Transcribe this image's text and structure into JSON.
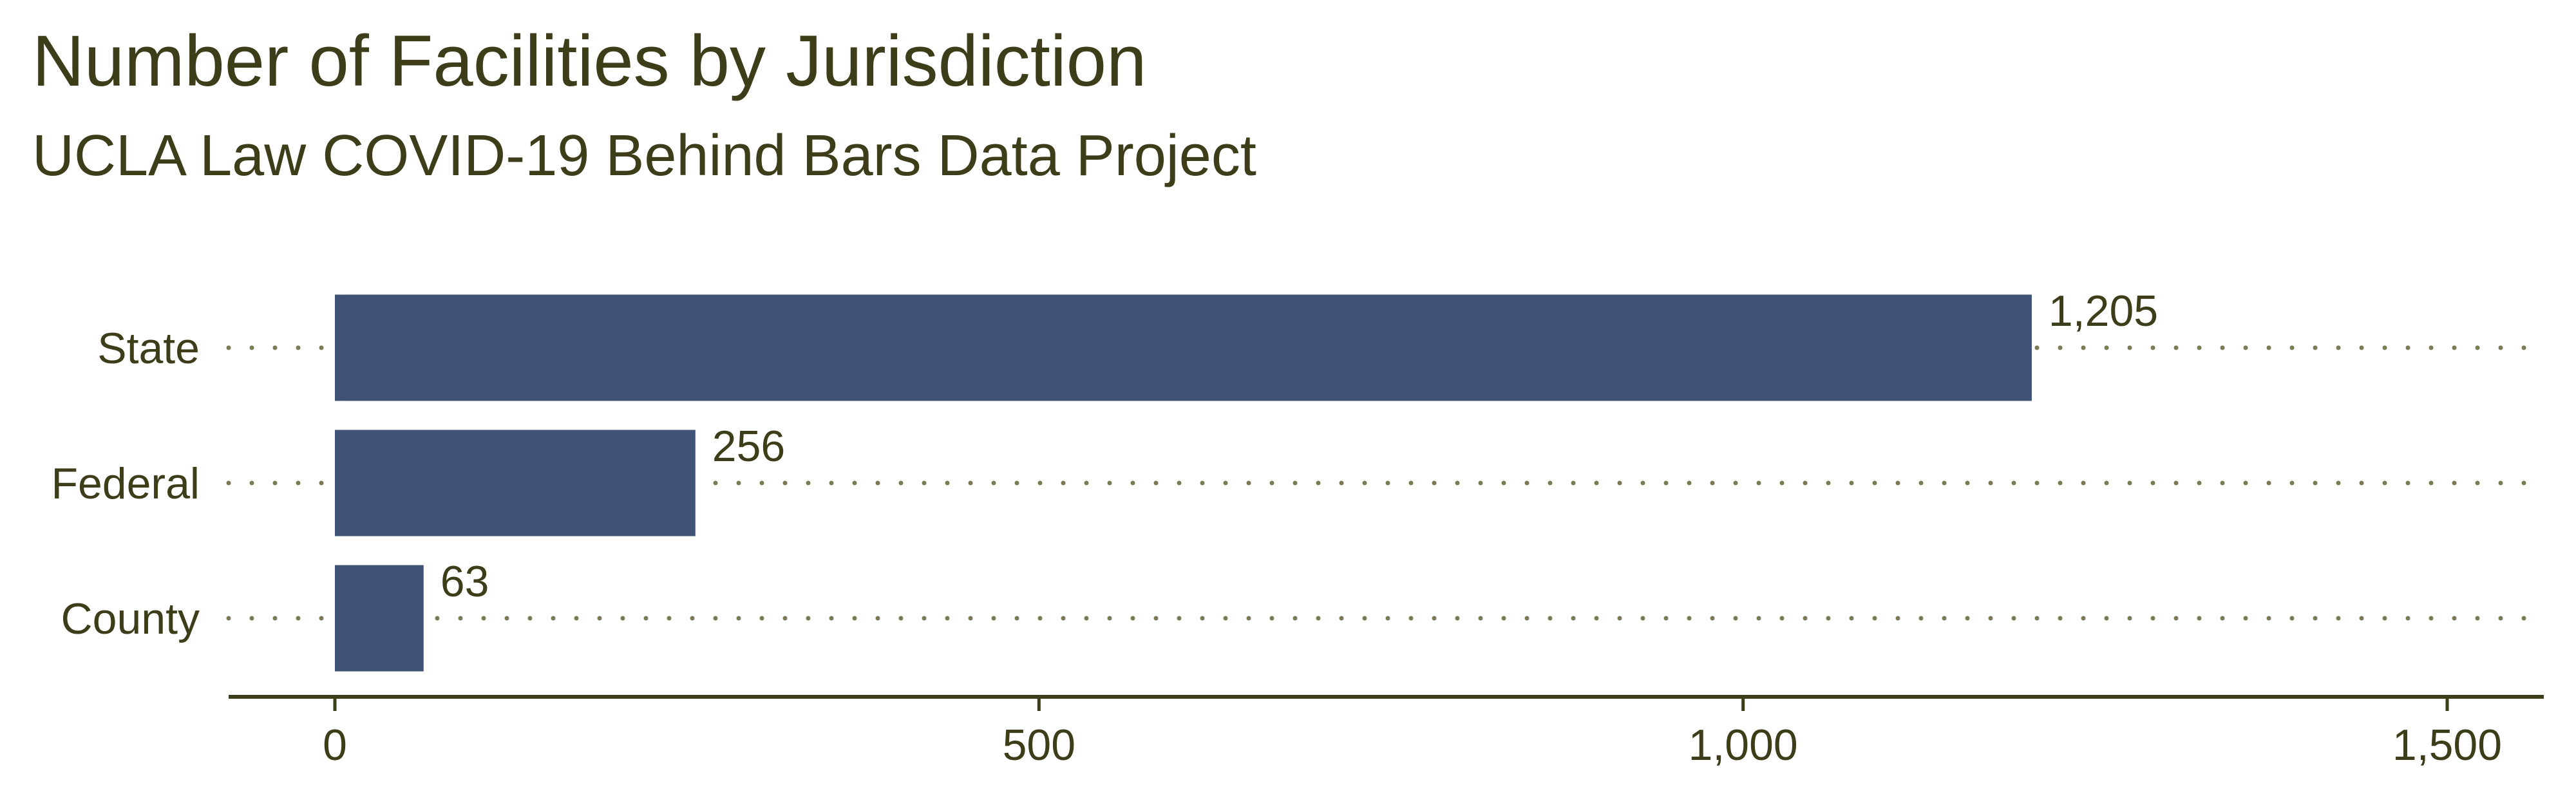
{
  "chart_data": {
    "type": "bar",
    "orientation": "horizontal",
    "title": "Number of Facilities by Jurisdiction",
    "subtitle": "UCLA Law COVID-19 Behind Bars Data Project",
    "categories": [
      "State",
      "Federal",
      "County"
    ],
    "values": [
      1205,
      256,
      63
    ],
    "value_labels": [
      "1,205",
      "256",
      "63"
    ],
    "xlim": [
      0,
      1500
    ],
    "xticks": [
      0,
      500,
      1000,
      1500
    ],
    "xtick_labels": [
      "0",
      "500",
      "1,000",
      "1,500"
    ],
    "xlabel": "",
    "ylabel": "",
    "grid": "dotted horizontal lines at each category",
    "legend": "none"
  },
  "colors": {
    "bar": "#3e5375",
    "text": "#3d3d1a",
    "grid": "#7a7a55",
    "axis": "#3d3d1a"
  }
}
